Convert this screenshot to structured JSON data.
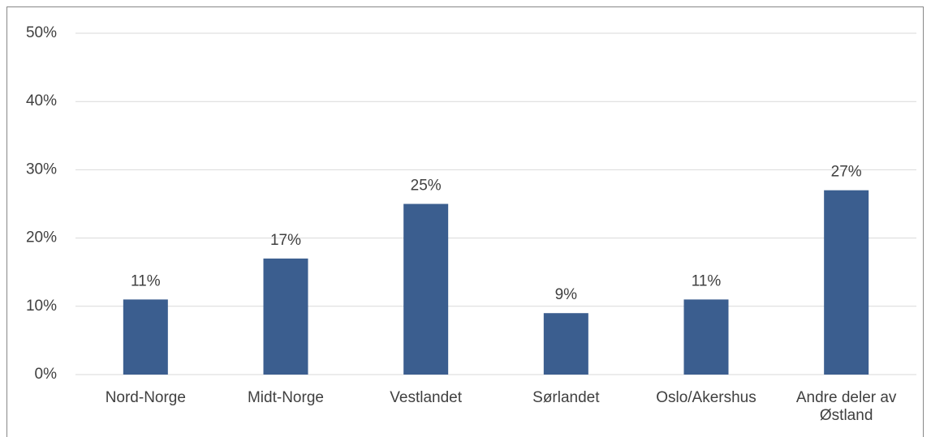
{
  "chart_data": {
    "type": "bar",
    "categories": [
      "Nord-Norge",
      "Midt-Norge",
      "Vestlandet",
      "Sørlandet",
      "Oslo/Akershus",
      "Andre deler av Østland"
    ],
    "values": [
      11,
      17,
      25,
      9,
      11,
      27
    ],
    "value_labels": [
      "11%",
      "17%",
      "25%",
      "9%",
      "11%",
      "27%"
    ],
    "color": "#3b5e8f",
    "ylim": [
      0,
      50
    ],
    "yticks": [
      {
        "value": 0,
        "label": "0%"
      },
      {
        "value": 10,
        "label": "10%"
      },
      {
        "value": 20,
        "label": "20%"
      },
      {
        "value": 30,
        "label": "30%"
      },
      {
        "value": 40,
        "label": "40%"
      },
      {
        "value": 50,
        "label": "50%"
      }
    ],
    "grid": true
  }
}
